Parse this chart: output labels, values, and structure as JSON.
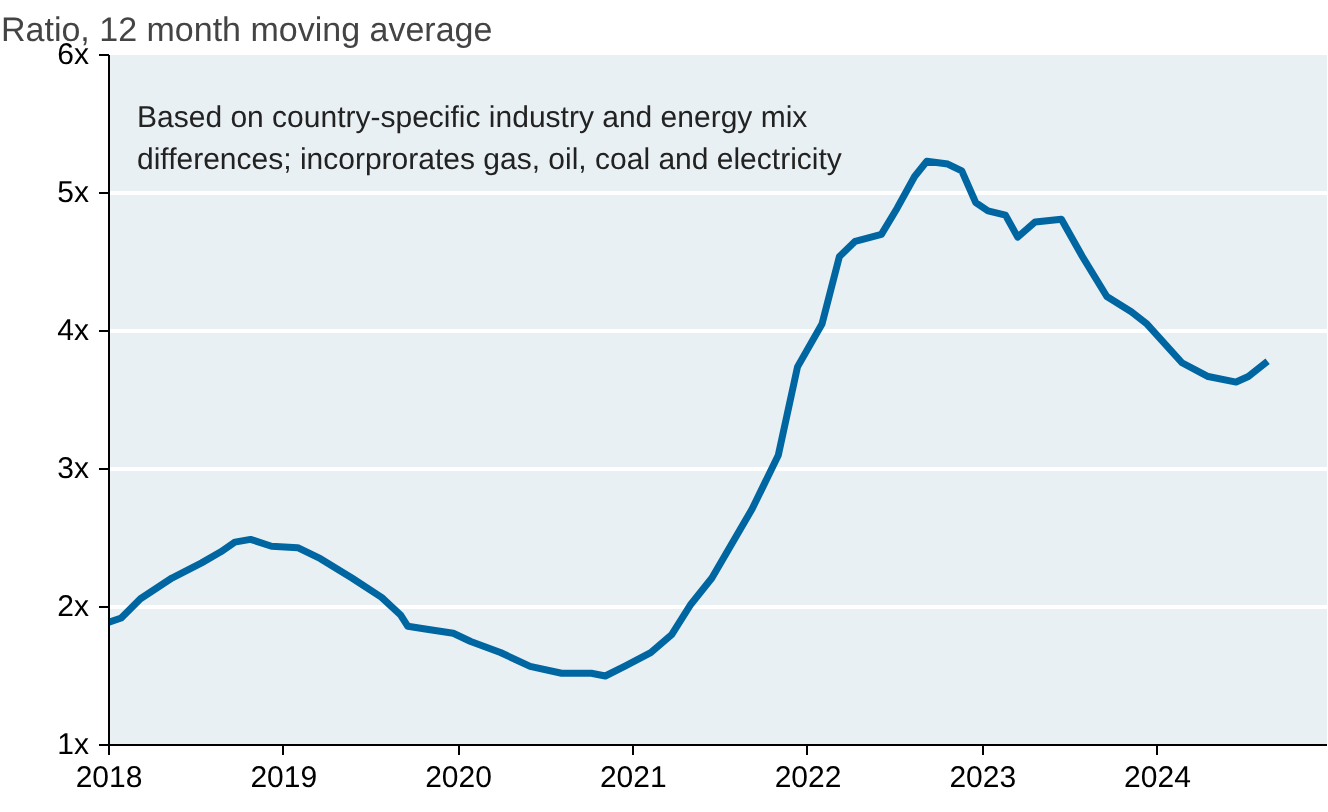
{
  "chart_data": {
    "type": "line",
    "subtitle": "Ratio, 12 month moving average",
    "annotations": [
      "Based on country-specific industry and energy mix\ndifferences; incorprorates gas, oil, coal and electricity"
    ],
    "x": [
      2018.0,
      2018.07,
      2018.18,
      2018.36,
      2018.53,
      2018.64,
      2018.72,
      2018.81,
      2018.93,
      2019.08,
      2019.21,
      2019.39,
      2019.56,
      2019.67,
      2019.71,
      2019.81,
      2019.97,
      2020.07,
      2020.24,
      2020.41,
      2020.59,
      2020.76,
      2020.84,
      2020.95,
      2021.1,
      2021.22,
      2021.33,
      2021.45,
      2021.56,
      2021.68,
      2021.83,
      2021.94,
      2022.08,
      2022.18,
      2022.27,
      2022.42,
      2022.51,
      2022.61,
      2022.68,
      2022.8,
      2022.88,
      2022.96,
      2023.03,
      2023.13,
      2023.2,
      2023.3,
      2023.45,
      2023.57,
      2023.71,
      2023.85,
      2023.94,
      2024.14,
      2024.29,
      2024.45,
      2024.52,
      2024.63
    ],
    "series": [
      {
        "color": "#0066a1",
        "values": [
          1.89,
          1.92,
          2.06,
          2.21,
          2.32,
          2.4,
          2.47,
          2.49,
          2.44,
          2.43,
          2.35,
          2.21,
          2.07,
          1.94,
          1.86,
          1.84,
          1.81,
          1.75,
          1.67,
          1.57,
          1.52,
          1.52,
          1.5,
          1.57,
          1.67,
          1.8,
          2.02,
          2.21,
          2.45,
          2.71,
          3.1,
          3.74,
          4.05,
          4.54,
          4.65,
          4.7,
          4.89,
          5.12,
          5.23,
          5.21,
          5.16,
          4.93,
          4.87,
          4.84,
          4.68,
          4.79,
          4.81,
          4.54,
          4.25,
          4.14,
          4.05,
          3.77,
          3.67,
          3.63,
          3.67,
          3.78
        ]
      }
    ],
    "xlim": [
      2018,
      2024.97
    ],
    "xticks": [
      2018,
      2019,
      2020,
      2021,
      2022,
      2023,
      2024
    ],
    "ylim": [
      1,
      6
    ],
    "yticks": [
      {
        "value": 1,
        "label": "1x"
      },
      {
        "value": 2,
        "label": "2x"
      },
      {
        "value": 3,
        "label": "3x"
      },
      {
        "value": 4,
        "label": "4x"
      },
      {
        "value": 5,
        "label": "5x"
      },
      {
        "value": 6,
        "label": "6x"
      }
    ],
    "grid": "y",
    "marker": "none",
    "line_style": "solid"
  }
}
